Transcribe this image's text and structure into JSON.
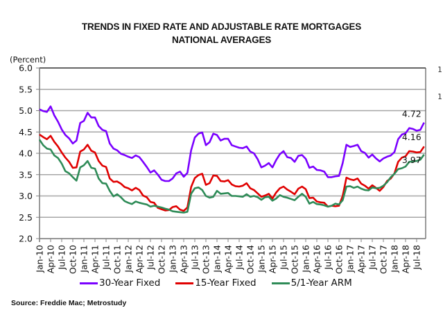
{
  "chart_data": {
    "type": "line",
    "title": "TRENDS IN FIXED RATE AND ADJUSTABLE RATE MORTGAGES",
    "subtitle": "NATIONAL AVERAGES",
    "ylabel": "(Percent)",
    "xlabel": "",
    "ylim": [
      2.0,
      6.0
    ],
    "yticks": [
      "2.0",
      "2.5",
      "3.0",
      "3.5",
      "4.0",
      "4.5",
      "5.0",
      "5.5",
      "6.0"
    ],
    "ytick_values": [
      2.0,
      2.5,
      3.0,
      3.5,
      4.0,
      4.5,
      5.0,
      5.5,
      6.0
    ],
    "grid": true,
    "legend_position": "bottom",
    "x_start": "Jan-10",
    "x_frequency": "monthly",
    "xticks": [
      "Jan-10",
      "Apr-10",
      "Jul-10",
      "Oct-10",
      "Jan-11",
      "Apr-11",
      "Jul-11",
      "Oct-11",
      "Jan-12",
      "Apr-12",
      "Jul-12",
      "Oct-12",
      "Jan-13",
      "Apr-13",
      "Jul-13",
      "Oct-13",
      "Jan-14",
      "Apr-14",
      "Jul-14",
      "Oct-14",
      "Jan-15",
      "Apr-15",
      "Jul-15",
      "Oct-15",
      "Jan-16",
      "Apr-16",
      "Jul-16",
      "Oct-16",
      "Jan-17",
      "Apr-17",
      "Jul-17",
      "Oct-17",
      "Jan-18",
      "Apr-18",
      "Jul-18"
    ],
    "series": [
      {
        "name": "30-Year Fixed",
        "color": "#7a00ff",
        "end_label": "4.72",
        "values": [
          5.03,
          4.99,
          4.97,
          5.1,
          4.89,
          4.74,
          4.56,
          4.43,
          4.35,
          4.23,
          4.3,
          4.71,
          4.76,
          4.95,
          4.84,
          4.84,
          4.64,
          4.55,
          4.52,
          4.23,
          4.11,
          4.07,
          3.99,
          3.96,
          3.92,
          3.89,
          3.95,
          3.91,
          3.8,
          3.68,
          3.55,
          3.6,
          3.5,
          3.38,
          3.35,
          3.35,
          3.41,
          3.53,
          3.57,
          3.45,
          3.54,
          4.07,
          4.37,
          4.46,
          4.49,
          4.19,
          4.26,
          4.46,
          4.43,
          4.3,
          4.34,
          4.34,
          4.19,
          4.16,
          4.13,
          4.12,
          4.16,
          4.04,
          4.0,
          3.86,
          3.67,
          3.71,
          3.77,
          3.67,
          3.84,
          3.98,
          4.05,
          3.91,
          3.89,
          3.8,
          3.94,
          3.96,
          3.87,
          3.66,
          3.69,
          3.61,
          3.6,
          3.57,
          3.44,
          3.44,
          3.46,
          3.47,
          3.77,
          4.2,
          4.15,
          4.17,
          4.2,
          4.05,
          4.01,
          3.9,
          3.97,
          3.88,
          3.81,
          3.88,
          3.92,
          3.95,
          4.03,
          4.33,
          4.44,
          4.47,
          4.59,
          4.57,
          4.53,
          4.55,
          4.72
        ],
        "values_note": "approximate monthly reading from gridlines"
      },
      {
        "name": "15-Year Fixed",
        "color": "#e00000",
        "end_label": "4.16",
        "values": [
          4.44,
          4.38,
          4.33,
          4.41,
          4.27,
          4.16,
          4.02,
          3.9,
          3.8,
          3.66,
          3.67,
          4.04,
          4.09,
          4.2,
          4.06,
          4.02,
          3.82,
          3.71,
          3.68,
          3.41,
          3.33,
          3.34,
          3.29,
          3.21,
          3.18,
          3.13,
          3.19,
          3.14,
          3.01,
          2.97,
          2.86,
          2.84,
          2.72,
          2.69,
          2.66,
          2.67,
          2.74,
          2.76,
          2.68,
          2.65,
          2.73,
          3.21,
          3.42,
          3.49,
          3.52,
          3.26,
          3.3,
          3.48,
          3.47,
          3.35,
          3.34,
          3.37,
          3.27,
          3.23,
          3.22,
          3.24,
          3.3,
          3.18,
          3.14,
          3.06,
          2.98,
          3.01,
          3.05,
          2.94,
          3.08,
          3.18,
          3.22,
          3.15,
          3.1,
          3.04,
          3.17,
          3.22,
          3.16,
          2.95,
          2.96,
          2.87,
          2.85,
          2.84,
          2.75,
          2.77,
          2.76,
          2.77,
          3.0,
          3.43,
          3.39,
          3.37,
          3.41,
          3.29,
          3.24,
          3.17,
          3.25,
          3.19,
          3.12,
          3.21,
          3.35,
          3.41,
          3.53,
          3.8,
          3.9,
          3.93,
          4.05,
          4.04,
          4.02,
          4.03,
          4.16
        ]
      },
      {
        "name": "5/1-Year ARM",
        "color": "#2e8b57",
        "end_label": "3.97",
        "values": [
          4.32,
          4.19,
          4.11,
          4.09,
          3.95,
          3.89,
          3.76,
          3.58,
          3.53,
          3.44,
          3.36,
          3.67,
          3.72,
          3.82,
          3.66,
          3.64,
          3.41,
          3.3,
          3.29,
          3.12,
          2.99,
          3.04,
          2.97,
          2.88,
          2.84,
          2.81,
          2.87,
          2.84,
          2.82,
          2.8,
          2.75,
          2.77,
          2.75,
          2.73,
          2.7,
          2.68,
          2.64,
          2.63,
          2.62,
          2.61,
          2.63,
          3.05,
          3.18,
          3.2,
          3.14,
          3.0,
          2.96,
          2.98,
          3.12,
          3.05,
          3.06,
          3.07,
          3.0,
          3.0,
          2.99,
          2.98,
          3.04,
          2.98,
          3.0,
          2.97,
          2.91,
          2.97,
          2.98,
          2.89,
          2.94,
          3.02,
          2.98,
          2.96,
          2.93,
          2.9,
          2.98,
          3.05,
          2.98,
          2.82,
          2.86,
          2.81,
          2.8,
          2.78,
          2.75,
          2.77,
          2.82,
          2.8,
          2.9,
          3.22,
          3.23,
          3.19,
          3.22,
          3.17,
          3.14,
          3.13,
          3.2,
          3.18,
          3.19,
          3.24,
          3.32,
          3.44,
          3.52,
          3.63,
          3.65,
          3.69,
          3.8,
          3.81,
          3.82,
          3.85,
          3.97
        ]
      }
    ]
  },
  "source": "Source: Freddie Mac; Metrostudy",
  "edge_fragments": [
    "1",
    "1"
  ]
}
